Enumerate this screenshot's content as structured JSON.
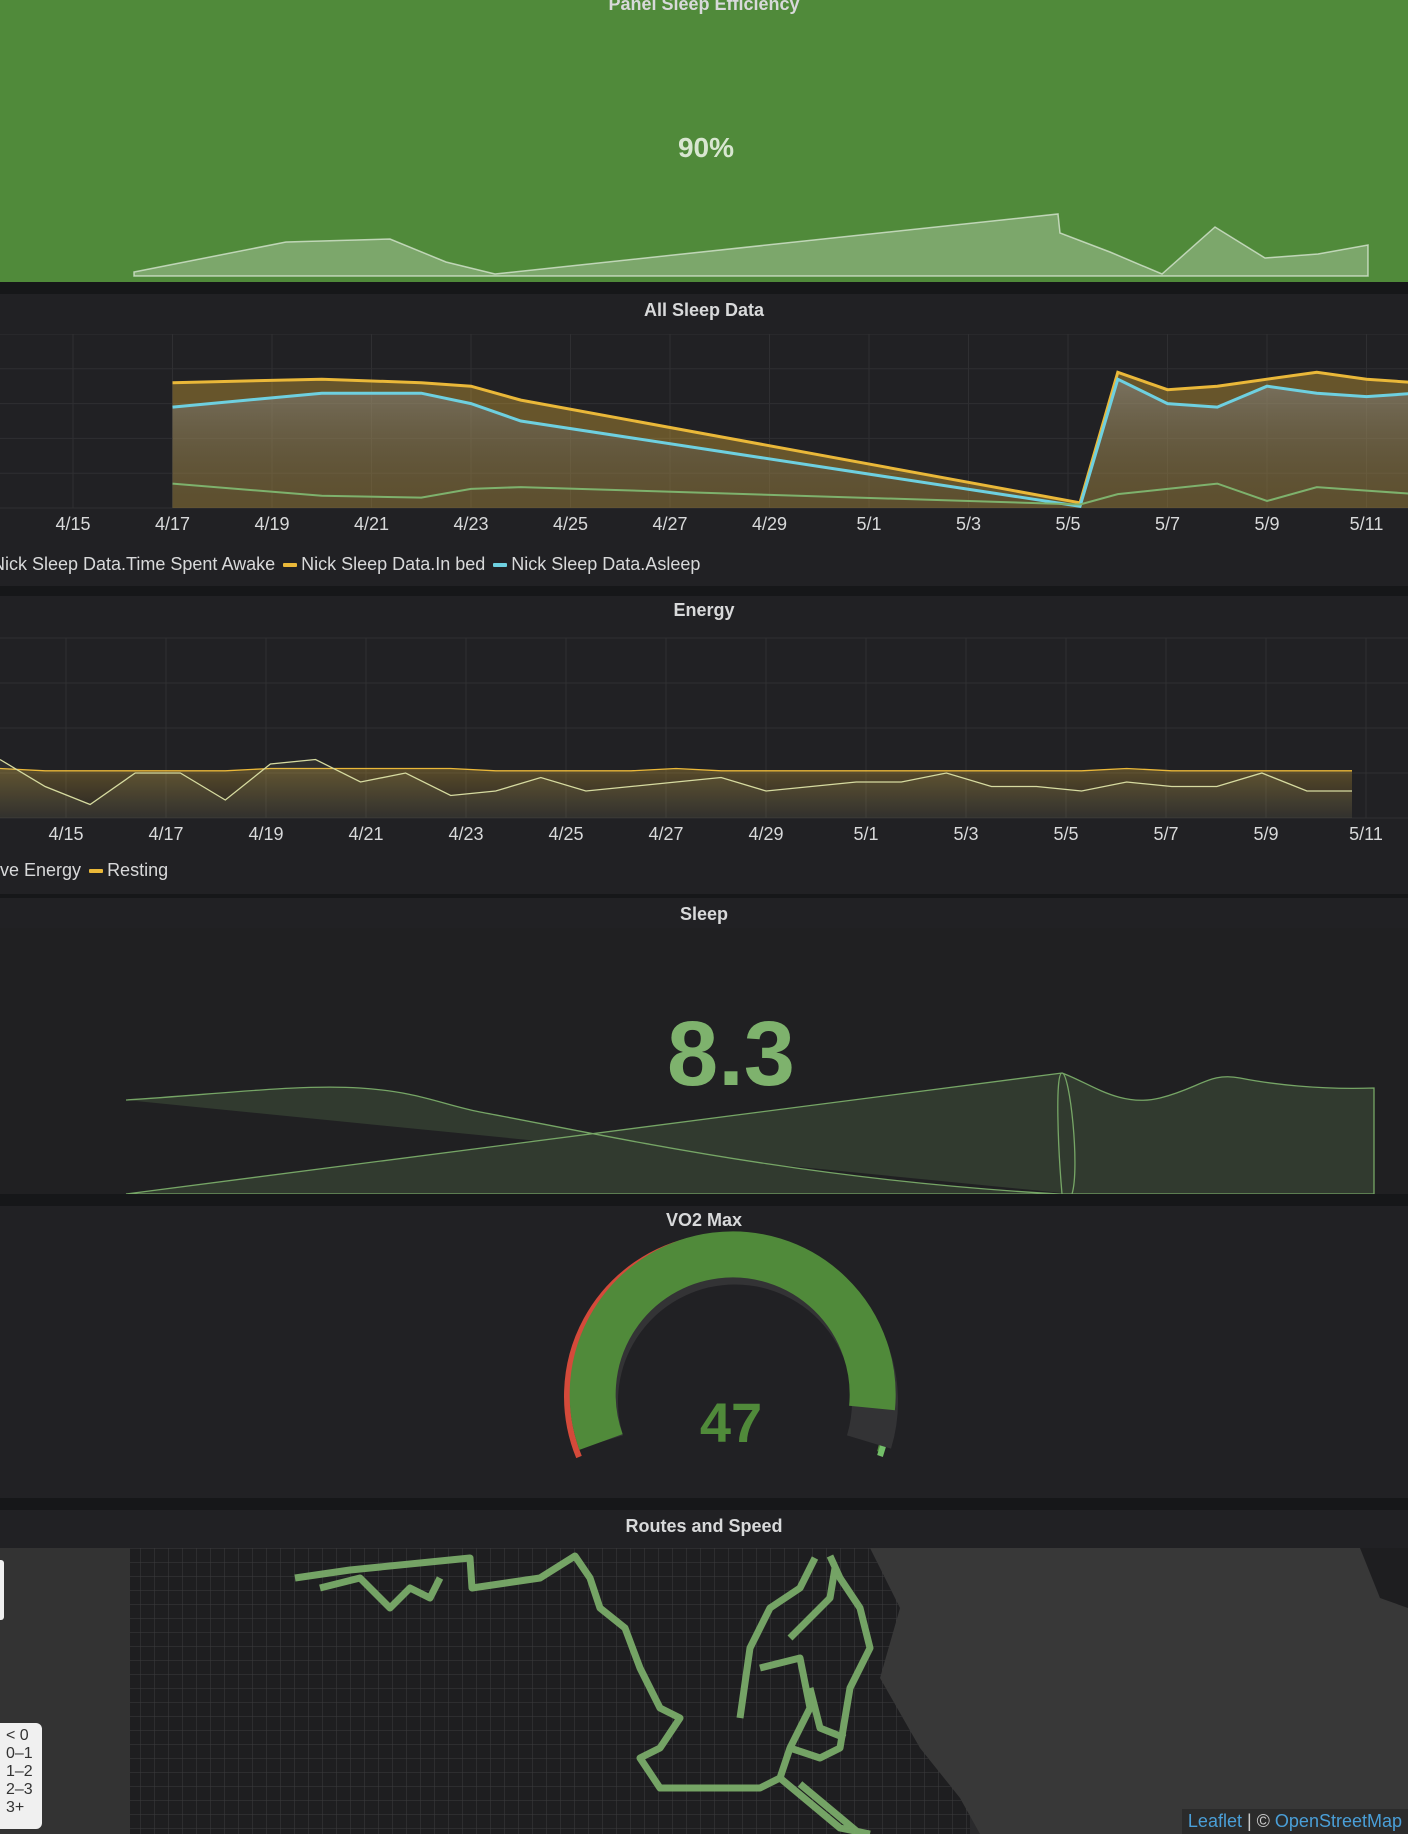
{
  "colors": {
    "green_panel": "#508a3a",
    "panel_bg": "#212124",
    "in_bed": "#eab839",
    "asleep": "#6ed0e0",
    "awake": "#7eb26d",
    "stat_green": "#7eb26d",
    "gauge_red": "#d44a3a",
    "gauge_green": "#508a3a"
  },
  "panels": {
    "sleep_efficiency": {
      "title": "Panel Sleep Efficiency",
      "value": "90%"
    },
    "all_sleep": {
      "title": "All Sleep Data"
    },
    "energy": {
      "title": "Energy"
    },
    "sleep": {
      "title": "Sleep",
      "value": "8.3"
    },
    "vo2": {
      "title": "VO2 Max",
      "value": "47"
    },
    "routes": {
      "title": "Routes and Speed",
      "legend": [
        "< 0",
        "0–1",
        "1–2",
        "2–3",
        "3+"
      ],
      "attribution_leaflet": "Leaflet",
      "attribution_sep": " | © ",
      "attribution_osm": "OpenStreetMap"
    }
  },
  "chart_data": [
    {
      "type": "area",
      "title": "All Sleep Data",
      "x": [
        "4/17",
        "4/20",
        "4/22",
        "4/23",
        "4/24",
        "5/4",
        "5/5",
        "5/6",
        "5/7",
        "5/8",
        "5/9",
        "5/10",
        "5/11"
      ],
      "x_ticks": [
        "4/15",
        "4/17",
        "4/19",
        "4/21",
        "4/23",
        "4/25",
        "4/27",
        "4/29",
        "5/1",
        "5/3",
        "5/5",
        "5/7",
        "5/9",
        "5/11"
      ],
      "series": [
        {
          "name": "Nick Sleep Data.Time Spent Awake",
          "values": [
            0.7,
            0.35,
            0.3,
            0.55,
            0.6,
            0.1,
            0.4,
            0.55,
            0.7,
            0.2,
            0.6,
            0.5,
            0.4
          ]
        },
        {
          "name": "Nick Sleep Data.In bed",
          "values": [
            3.6,
            3.7,
            3.6,
            3.5,
            3.1,
            0.15,
            3.9,
            3.4,
            3.5,
            3.7,
            3.9,
            3.7,
            3.6
          ]
        },
        {
          "name": "Nick Sleep Data.Asleep",
          "values": [
            2.9,
            3.3,
            3.3,
            3.0,
            2.5,
            0.05,
            3.7,
            3.0,
            2.9,
            3.5,
            3.3,
            3.2,
            3.3
          ]
        }
      ],
      "ylim": [
        0,
        5
      ],
      "grid": true,
      "legend": "bottom-left"
    },
    {
      "type": "line",
      "title": "Energy",
      "x_ticks": [
        "4/15",
        "4/17",
        "4/19",
        "4/21",
        "4/23",
        "4/25",
        "4/27",
        "4/29",
        "5/1",
        "5/3",
        "5/5",
        "5/7",
        "5/9",
        "5/11"
      ],
      "series": [
        {
          "name": "Active Energy",
          "values": [
            1.3,
            0.7,
            0.3,
            1.0,
            1.0,
            0.4,
            1.2,
            1.3,
            0.8,
            1.0,
            0.5,
            0.6,
            0.9,
            0.6,
            0.7,
            0.8,
            0.9,
            0.6,
            0.7,
            0.8,
            0.8,
            1.0,
            0.7,
            0.7,
            0.6,
            0.8,
            0.7,
            0.7,
            1.0,
            0.6,
            0.6
          ]
        },
        {
          "name": "Resting",
          "values": [
            1.1,
            1.05,
            1.05,
            1.05,
            1.05,
            1.05,
            1.1,
            1.1,
            1.1,
            1.1,
            1.1,
            1.05,
            1.05,
            1.05,
            1.05,
            1.1,
            1.05,
            1.05,
            1.05,
            1.05,
            1.05,
            1.05,
            1.05,
            1.05,
            1.05,
            1.1,
            1.05,
            1.05,
            1.05,
            1.05,
            1.05
          ]
        }
      ],
      "ylim": [
        0,
        4
      ],
      "grid": true,
      "legend": "bottom-left"
    }
  ]
}
